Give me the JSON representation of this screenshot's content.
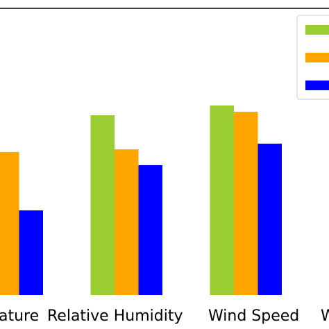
{
  "chart_data": {
    "type": "bar",
    "categories": [
      "ature",
      "Relative Humidity",
      "Wind Speed",
      "W"
    ],
    "series": [
      {
        "color": "#9acd32",
        "values": [
          null,
          62.7,
          66.1,
          null
        ]
      },
      {
        "color": "#ffa500",
        "values": [
          49.9,
          50.8,
          63.9,
          null
        ]
      },
      {
        "color": "#0000ff",
        "values": [
          29.5,
          45.3,
          52.8,
          null
        ]
      }
    ],
    "ylim": [
      0,
      100
    ],
    "legend": "upper right"
  }
}
